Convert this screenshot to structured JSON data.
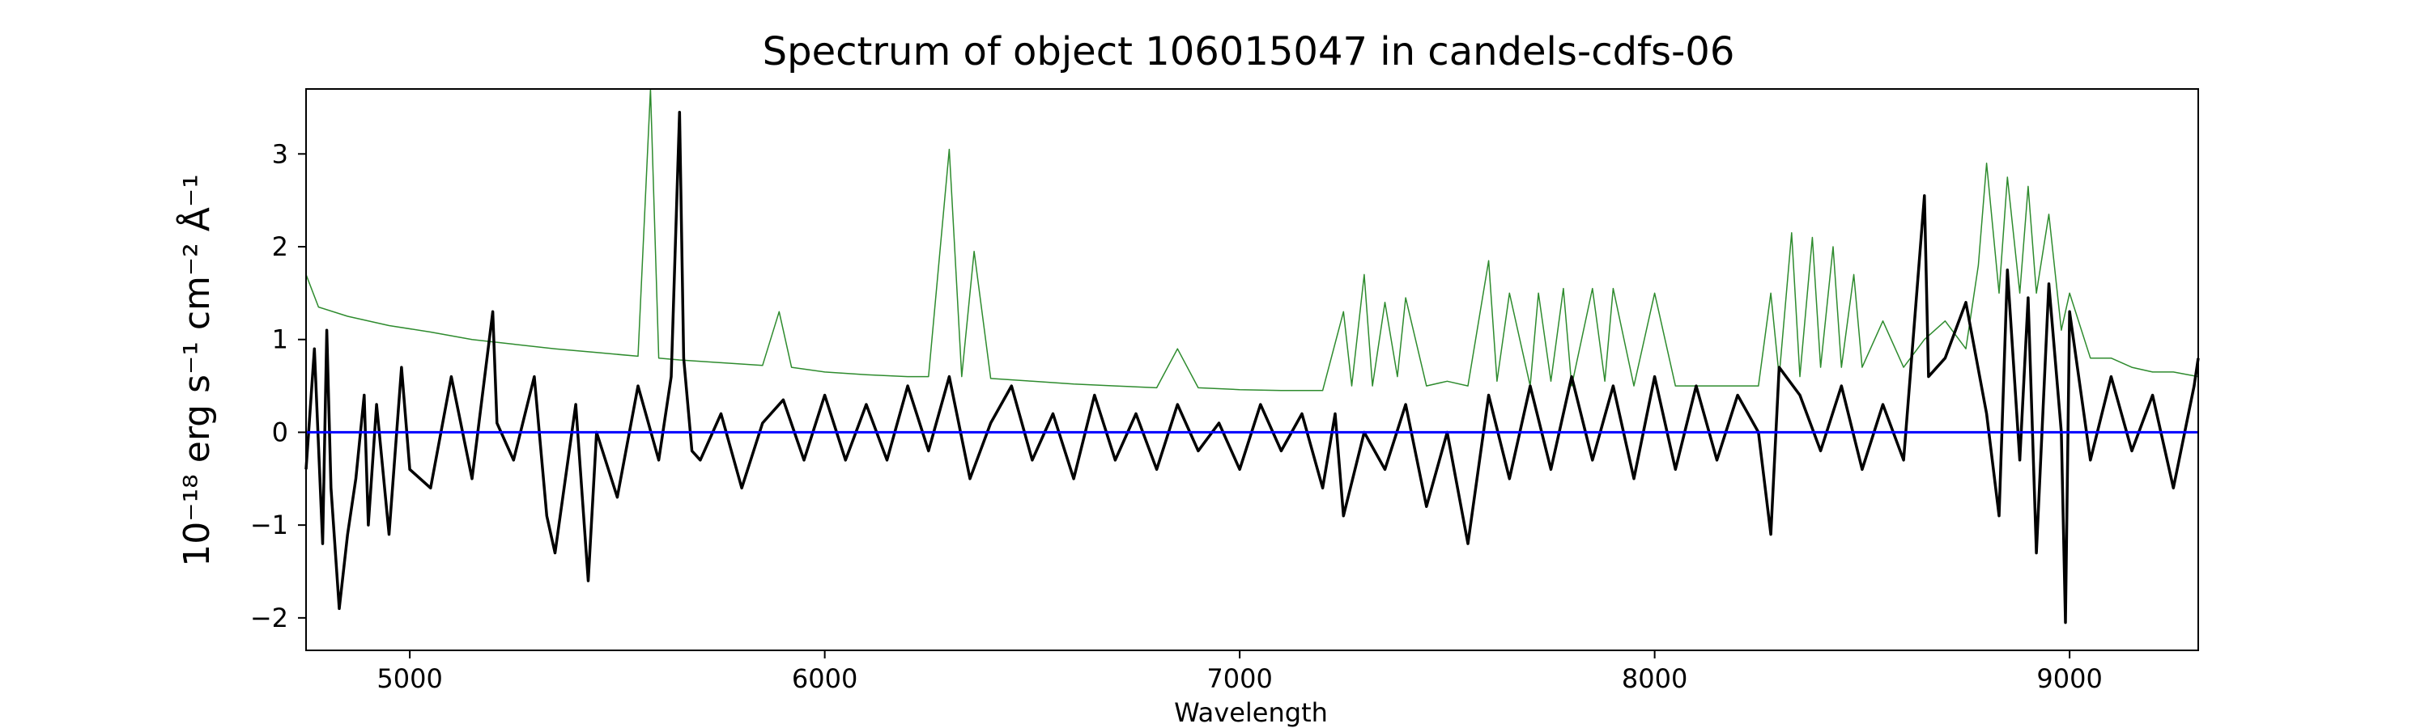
{
  "chart_data": {
    "type": "line",
    "title": "Spectrum of object 106015047 in candels-cdfs-06",
    "xlabel": "Wavelength",
    "ylabel": "10⁻¹⁸ erg s⁻¹ cm⁻² Å⁻¹",
    "xlim": [
      4750,
      9310
    ],
    "ylim": [
      -2.35,
      3.7
    ],
    "xticks": [
      5000,
      6000,
      7000,
      8000,
      9000
    ],
    "yticks": [
      -2,
      -1,
      0,
      1,
      2,
      3
    ],
    "xtick_labels": [
      "5000",
      "6000",
      "7000",
      "8000",
      "9000"
    ],
    "ytick_labels": [
      "−2",
      "−1",
      "0",
      "1",
      "2",
      "3"
    ],
    "grid": false,
    "legend": "none",
    "series": [
      {
        "color": "#2e8b2e",
        "style": "thin line",
        "x": [
          4750,
          4780,
          4850,
          4950,
          5050,
          5150,
          5250,
          5350,
          5450,
          5550,
          5580,
          5600,
          5650,
          5750,
          5850,
          5890,
          5920,
          6000,
          6100,
          6200,
          6250,
          6300,
          6330,
          6360,
          6400,
          6500,
          6600,
          6700,
          6800,
          6850,
          6900,
          7000,
          7100,
          7200,
          7250,
          7270,
          7300,
          7320,
          7350,
          7380,
          7400,
          7450,
          7500,
          7550,
          7600,
          7620,
          7650,
          7700,
          7720,
          7750,
          7780,
          7800,
          7850,
          7880,
          7900,
          7950,
          8000,
          8050,
          8100,
          8150,
          8200,
          8250,
          8280,
          8300,
          8330,
          8350,
          8380,
          8400,
          8430,
          8450,
          8480,
          8500,
          8550,
          8600,
          8650,
          8700,
          8750,
          8780,
          8800,
          8830,
          8850,
          8880,
          8900,
          8920,
          8950,
          8980,
          9000,
          9050,
          9100,
          9150,
          9200,
          9250,
          9310
        ],
        "y": [
          1.7,
          1.35,
          1.25,
          1.15,
          1.08,
          1.0,
          0.95,
          0.9,
          0.86,
          0.82,
          3.7,
          0.8,
          0.78,
          0.75,
          0.72,
          1.3,
          0.7,
          0.65,
          0.62,
          0.6,
          0.6,
          3.05,
          0.6,
          1.95,
          0.58,
          0.55,
          0.52,
          0.5,
          0.48,
          0.9,
          0.48,
          0.46,
          0.45,
          0.45,
          1.3,
          0.5,
          1.7,
          0.5,
          1.4,
          0.6,
          1.45,
          0.5,
          0.55,
          0.5,
          1.85,
          0.55,
          1.5,
          0.5,
          1.5,
          0.55,
          1.55,
          0.5,
          1.55,
          0.55,
          1.55,
          0.5,
          1.5,
          0.5,
          0.5,
          0.5,
          0.5,
          0.5,
          1.5,
          0.6,
          2.15,
          0.6,
          2.1,
          0.7,
          2.0,
          0.7,
          1.7,
          0.7,
          1.2,
          0.7,
          1.0,
          1.2,
          0.9,
          1.8,
          2.9,
          1.5,
          2.75,
          1.5,
          2.65,
          1.5,
          2.35,
          1.1,
          1.5,
          0.8,
          0.8,
          0.7,
          0.65,
          0.65,
          0.6
        ]
      },
      {
        "color": "#000000",
        "style": "thick line",
        "x": [
          4750,
          4770,
          4790,
          4800,
          4810,
          4830,
          4850,
          4870,
          4890,
          4900,
          4920,
          4950,
          4980,
          5000,
          5050,
          5100,
          5150,
          5200,
          5210,
          5250,
          5300,
          5330,
          5350,
          5400,
          5430,
          5450,
          5500,
          5550,
          5600,
          5630,
          5650,
          5660,
          5680,
          5700,
          5750,
          5800,
          5850,
          5900,
          5950,
          6000,
          6050,
          6100,
          6150,
          6200,
          6250,
          6300,
          6350,
          6400,
          6450,
          6500,
          6550,
          6600,
          6650,
          6700,
          6750,
          6800,
          6850,
          6900,
          6950,
          7000,
          7050,
          7100,
          7150,
          7200,
          7230,
          7250,
          7300,
          7350,
          7400,
          7450,
          7500,
          7550,
          7600,
          7650,
          7700,
          7750,
          7800,
          7850,
          7900,
          7950,
          8000,
          8050,
          8100,
          8150,
          8200,
          8250,
          8280,
          8300,
          8350,
          8400,
          8450,
          8500,
          8550,
          8600,
          8650,
          8660,
          8700,
          8750,
          8800,
          8830,
          8850,
          8880,
          8900,
          8920,
          8950,
          8980,
          8990,
          9000,
          9050,
          9100,
          9150,
          9200,
          9250,
          9300,
          9310
        ],
        "y": [
          -0.4,
          0.9,
          -1.2,
          1.1,
          -0.6,
          -1.9,
          -1.1,
          -0.5,
          0.4,
          -1.0,
          0.3,
          -1.1,
          0.7,
          -0.4,
          -0.6,
          0.6,
          -0.5,
          1.3,
          0.1,
          -0.3,
          0.6,
          -0.9,
          -1.3,
          0.3,
          -1.6,
          0.0,
          -0.7,
          0.5,
          -0.3,
          0.6,
          3.45,
          0.8,
          -0.2,
          -0.3,
          0.2,
          -0.6,
          0.1,
          0.35,
          -0.3,
          0.4,
          -0.3,
          0.3,
          -0.3,
          0.5,
          -0.2,
          0.6,
          -0.5,
          0.1,
          0.5,
          -0.3,
          0.2,
          -0.5,
          0.4,
          -0.3,
          0.2,
          -0.4,
          0.3,
          -0.2,
          0.1,
          -0.4,
          0.3,
          -0.2,
          0.2,
          -0.6,
          0.2,
          -0.9,
          0.0,
          -0.4,
          0.3,
          -0.8,
          0.0,
          -1.2,
          0.4,
          -0.5,
          0.5,
          -0.4,
          0.6,
          -0.3,
          0.5,
          -0.5,
          0.6,
          -0.4,
          0.5,
          -0.3,
          0.4,
          0.0,
          -1.1,
          0.7,
          0.4,
          -0.2,
          0.5,
          -0.4,
          0.3,
          -0.3,
          2.55,
          0.6,
          0.8,
          1.4,
          0.2,
          -0.9,
          1.75,
          -0.3,
          1.45,
          -1.3,
          1.6,
          0.0,
          -2.05,
          1.3,
          -0.3,
          0.6,
          -0.2,
          0.4,
          -0.6,
          0.5,
          0.8
        ]
      },
      {
        "color": "#0000ff",
        "style": "flat line",
        "x": [
          4750,
          9310
        ],
        "y": [
          0,
          0
        ]
      }
    ]
  }
}
